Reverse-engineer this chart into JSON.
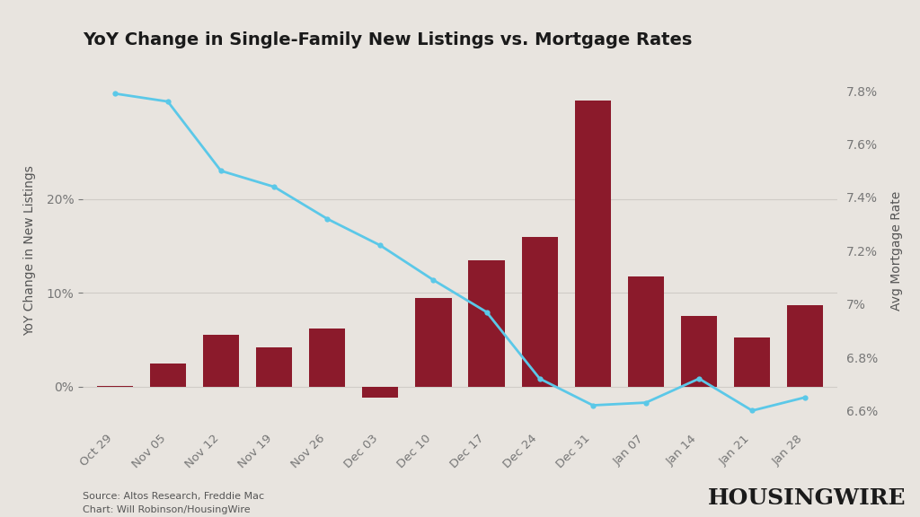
{
  "title": "YoY Change in Single-Family New Listings vs. Mortgage Rates",
  "background_color": "#e8e4df",
  "bar_color": "#8b1a2b",
  "line_color": "#5bc8e8",
  "categories": [
    "Oct 29",
    "Nov 05",
    "Nov 12",
    "Nov 19",
    "Nov 26",
    "Dec 03",
    "Dec 10",
    "Dec 17",
    "Dec 24",
    "Dec 31",
    "Jan 07",
    "Jan 14",
    "Jan 21",
    "Jan 28"
  ],
  "bar_values": [
    0.1,
    2.5,
    5.5,
    4.2,
    6.2,
    -1.2,
    9.5,
    13.5,
    16.0,
    30.5,
    11.8,
    7.5,
    5.2,
    8.7
  ],
  "mortgage_rates": [
    7.79,
    7.76,
    7.5,
    7.44,
    7.32,
    7.22,
    7.09,
    6.97,
    6.72,
    6.62,
    6.63,
    6.72,
    6.6,
    6.65
  ],
  "ylabel_left": "YoY Change in New Listings",
  "ylabel_right": "Avg Mortgage Rate",
  "ylim_left": [
    -4,
    33
  ],
  "ylim_right": [
    6.55,
    7.85
  ],
  "yticks_left": [
    0,
    10,
    20
  ],
  "yticks_left_labels": [
    "0%",
    "10%",
    "20%"
  ],
  "yticks_right": [
    6.6,
    6.8,
    7.0,
    7.2,
    7.4,
    7.6,
    7.8
  ],
  "yticks_right_labels": [
    "6.6%",
    "6.8%",
    "7%",
    "7.2%",
    "7.4%",
    "7.6%",
    "7.8%"
  ],
  "source_text": "Source: Altos Research, Freddie Mac\nChart: Will Robinson/HousingWire",
  "logo_text": "HOUSINGWIRE",
  "grid_color": "#d0ccc7",
  "tick_color": "#777777",
  "text_color": "#555555",
  "title_color": "#1a1a1a",
  "label_fontsize": 10,
  "tick_fontsize": 10,
  "title_fontsize": 14,
  "source_fontsize": 8,
  "logo_fontsize": 18
}
